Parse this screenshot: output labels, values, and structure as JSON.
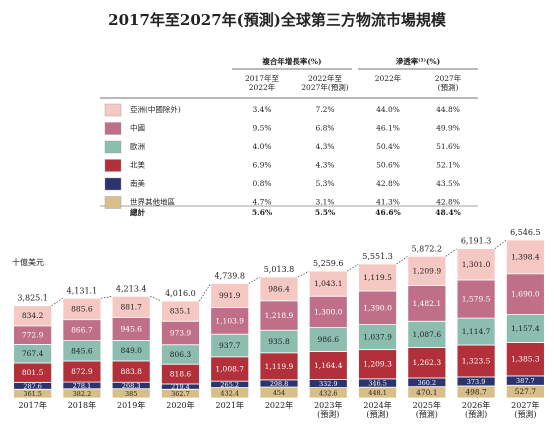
{
  "chart_data": {
    "type": "stacked_bar",
    "title": "2017年至2027年(預測)全球第三方物流市場規模",
    "unit_label": "十億美元",
    "categories": [
      "2017年",
      "2018年",
      "2019年",
      "2020年",
      "2021年",
      "2022年",
      "2023年\n(預測)",
      "2024年\n(預測)",
      "2025年\n(預測)",
      "2026年\n(預測)",
      "2027年\n(預測)"
    ],
    "series": [
      {
        "name": "亞洲(中國除外)",
        "color": "#f6c8c3",
        "text_color": "#222",
        "values": [
          834.2,
          885.6,
          881.7,
          835.1,
          991.9,
          986.4,
          1043.1,
          1119.5,
          1209.9,
          1301.0,
          1398.4
        ],
        "value_labels": [
          "834.2",
          "885.6",
          "881.7",
          "835.1",
          "991.9",
          "986.4",
          "1,043.1",
          "1,119.5",
          "1,209.9",
          "1,301.0",
          "1,398.4"
        ]
      },
      {
        "name": "中國",
        "color": "#c06f88",
        "text_color": "#fff",
        "values": [
          772.9,
          866.7,
          945.6,
          973.9,
          1103.9,
          1218.9,
          1300.0,
          1390.0,
          1482.1,
          1579.5,
          1690.0
        ],
        "value_labels": [
          "772.9",
          "866.7",
          "945.6",
          "973.9",
          "1,103.9",
          "1,218.9",
          "1,300.0",
          "1,390.0",
          "1,482.1",
          "1,579.5",
          "1,690.0"
        ]
      },
      {
        "name": "歐洲",
        "color": "#8cbdaf",
        "text_color": "#222",
        "values": [
          767.4,
          845.6,
          849.0,
          806.3,
          937.7,
          935.8,
          986.6,
          1037.9,
          1087.6,
          1114.7,
          1157.4
        ],
        "value_labels": [
          "767.4",
          "845.6",
          "849.0",
          "806.3",
          "937.7",
          "935.8",
          "986.6",
          "1,037.9",
          "1,087.6",
          "1,114.7",
          "1,157.4"
        ]
      },
      {
        "name": "北美",
        "color": "#b2303a",
        "text_color": "#fff",
        "values": [
          801.5,
          872.9,
          883.8,
          818.6,
          1008.7,
          1119.9,
          1164.4,
          1209.3,
          1262.3,
          1323.5,
          1385.3
        ],
        "value_labels": [
          "801.5",
          "872.9",
          "883.8",
          "818.6",
          "1,008.7",
          "1,119.9",
          "1,164.4",
          "1,209.3",
          "1,262.3",
          "1,323.5",
          "1,385.3"
        ]
      },
      {
        "name": "南美",
        "color": "#2c346e",
        "text_color": "#fff",
        "values": [
          287.6,
          278.1,
          268.3,
          219.4,
          265.2,
          298.8,
          332.9,
          346.5,
          360.2,
          373.9,
          387.7
        ]
      },
      {
        "name": "世界其他地區",
        "color": "#d8bf89",
        "text_color": "#222",
        "values": [
          361.5,
          382.2,
          385.0,
          362.7,
          432.4,
          454.0,
          432.6,
          448.1,
          470.1,
          498.7,
          527.7
        ]
      }
    ],
    "totals": [
      3825.1,
      4131.1,
      4213.4,
      4016.0,
      4739.8,
      5013.8,
      5259.6,
      5551.3,
      5872.2,
      6191.3,
      6546.5
    ],
    "total_labels": [
      "3,825.1",
      "4,131.1",
      "4,213.4",
      "4,016.0",
      "4,739.8",
      "5,013.8",
      "5,259.6",
      "5,551.3",
      "5,872.2",
      "6,191.3",
      "6,546.5"
    ]
  },
  "table": {
    "groups": [
      "複合年增長率(%)",
      "滲透率⁽¹⁾(%)"
    ],
    "columns": [
      "2017年至\n2022年",
      "2022年至\n2027年(預測)",
      "2022年",
      "2027年\n(預測)"
    ],
    "rows": [
      [
        "3.4%",
        "7.2%",
        "44.0%",
        "44.8%"
      ],
      [
        "9.5%",
        "6.8%",
        "46.1%",
        "49.9%"
      ],
      [
        "4.0%",
        "4.3%",
        "50.4%",
        "51.6%"
      ],
      [
        "6.9%",
        "4.3%",
        "50.6%",
        "52.1%"
      ],
      [
        "0.8%",
        "5.3%",
        "42.8%",
        "43.5%"
      ],
      [
        "4.7%",
        "3.1%",
        "41.3%",
        "42.8%"
      ]
    ],
    "total": {
      "label": "總計",
      "cells": [
        "5.6%",
        "5.5%",
        "46.6%",
        "48.4%"
      ]
    }
  }
}
